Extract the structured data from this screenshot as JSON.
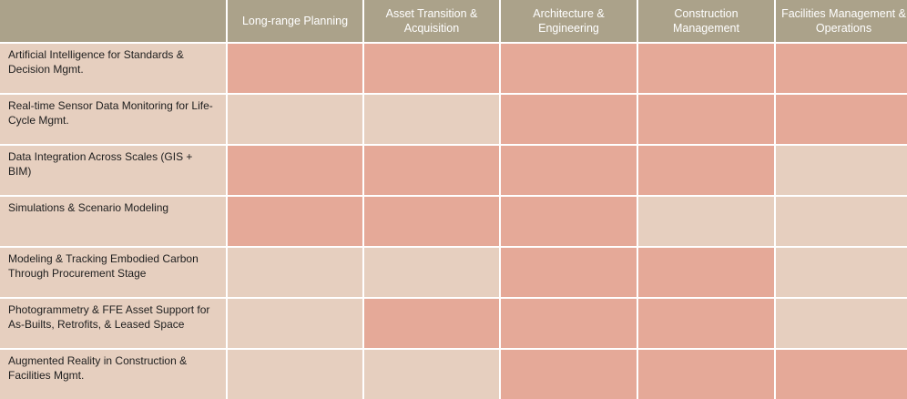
{
  "columns": [
    "",
    "Long-range Planning",
    "Asset Transition & Acquisition",
    "Architecture & Engineering",
    "Construction Management",
    "Facilities Management & Operations"
  ],
  "rows": [
    {
      "label": "Artificial Intelligence for Standards & Decision Mgmt.",
      "cells": [
        true,
        true,
        true,
        true,
        true
      ]
    },
    {
      "label": "Real-time Sensor Data Monitoring for Life-Cycle Mgmt.",
      "cells": [
        false,
        false,
        true,
        true,
        true
      ]
    },
    {
      "label": "Data Integration Across Scales (GIS + BIM)",
      "cells": [
        true,
        true,
        true,
        true,
        false
      ]
    },
    {
      "label": "Simulations & Scenario Modeling",
      "cells": [
        true,
        true,
        true,
        false,
        false
      ]
    },
    {
      "label": "Modeling & Tracking Embodied Carbon Through Procurement Stage",
      "cells": [
        false,
        false,
        true,
        true,
        false
      ]
    },
    {
      "label": "Photogrammetry & FFE Asset Support for As-Builts, Retrofits, & Leased Space",
      "cells": [
        false,
        true,
        true,
        true,
        false
      ]
    },
    {
      "label": "Augmented Reality in Construction & Facilities Mgmt.",
      "cells": [
        false,
        false,
        true,
        true,
        true
      ]
    }
  ],
  "colors": {
    "header": "#aba28a",
    "applicable": "#e5a998",
    "not_applicable": "#e6cfbf"
  }
}
